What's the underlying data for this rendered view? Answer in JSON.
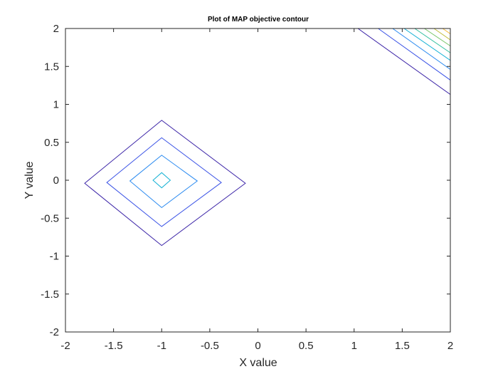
{
  "chart_data": {
    "type": "contour",
    "title": "Plot of MAP objective contour",
    "xlabel": "X value",
    "ylabel": "Y value",
    "xlim": [
      -2,
      2
    ],
    "ylim": [
      -2,
      2
    ],
    "xticks": [
      -2,
      -1.5,
      -1,
      -0.5,
      0,
      0.5,
      1,
      1.5,
      2
    ],
    "yticks": [
      -2,
      -1.5,
      -1,
      -0.5,
      0,
      0.5,
      1,
      1.5,
      2
    ],
    "xtick_labels": [
      "-2",
      "-1.5",
      "-1",
      "-0.5",
      "0",
      "0.5",
      "1",
      "1.5",
      "2"
    ],
    "ytick_labels": [
      "-2",
      "-1.5",
      "-1",
      "-0.5",
      "0",
      "0.5",
      "1",
      "1.5",
      "2"
    ],
    "grid": false,
    "colors": {
      "axis": "#262626",
      "background": "#ffffff",
      "levels": [
        "#3d26a8",
        "#3d55e6",
        "#2a8af0",
        "#14b1d4",
        "#35c1a0",
        "#7ac66b",
        "#c2bd3d",
        "#f5b83a"
      ]
    },
    "center_contours": [
      {
        "level_index": 0,
        "center": [
          -1.0,
          -0.04
        ],
        "left": -1.8,
        "right": -0.13,
        "top": 0.79,
        "bottom": -0.86
      },
      {
        "level_index": 1,
        "center": [
          -1.0,
          -0.03
        ],
        "left": -1.57,
        "right": -0.38,
        "top": 0.56,
        "bottom": -0.61
      },
      {
        "level_index": 2,
        "center": [
          -1.0,
          -0.01
        ],
        "left": -1.33,
        "right": -0.63,
        "top": 0.33,
        "bottom": -0.36
      },
      {
        "level_index": 3,
        "center": [
          -1.0,
          0.0
        ],
        "left": -1.09,
        "right": -0.91,
        "top": 0.1,
        "bottom": -0.1
      }
    ],
    "corner_contours": [
      {
        "level_index": 0,
        "from": [
          1.04,
          2.0
        ],
        "to": [
          2.0,
          1.13
        ]
      },
      {
        "level_index": 1,
        "from": [
          1.25,
          2.0
        ],
        "to": [
          2.0,
          1.32
        ]
      },
      {
        "level_index": 2,
        "from": [
          1.4,
          2.0
        ],
        "to": [
          2.0,
          1.46
        ]
      },
      {
        "level_index": 3,
        "from": [
          1.52,
          2.0
        ],
        "to": [
          2.0,
          1.58
        ]
      },
      {
        "level_index": 4,
        "from": [
          1.63,
          2.0
        ],
        "to": [
          2.0,
          1.68
        ]
      },
      {
        "level_index": 5,
        "from": [
          1.73,
          2.0
        ],
        "to": [
          2.0,
          1.77
        ]
      },
      {
        "level_index": 6,
        "from": [
          1.83,
          2.0
        ],
        "to": [
          2.0,
          1.85
        ]
      },
      {
        "level_index": 7,
        "from": [
          1.92,
          2.0
        ],
        "to": [
          2.0,
          1.93
        ]
      }
    ]
  }
}
